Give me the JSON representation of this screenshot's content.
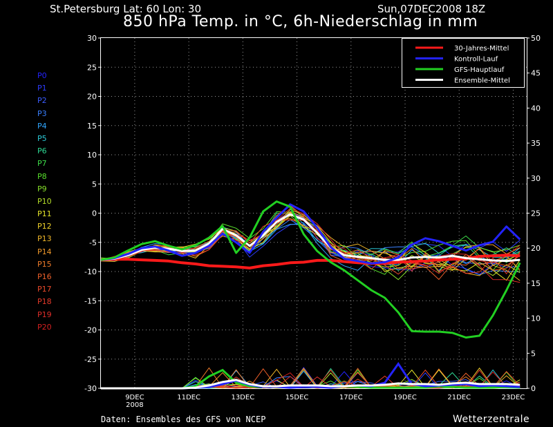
{
  "header": {
    "location": "St.Petersburg  Lat: 60 Lon: 30",
    "run": "Sun,07DEC2008 18Z",
    "title": "850 hPa Temp. in °C, 6h-Niederschlag in mm"
  },
  "footer": {
    "source": "Daten: Ensembles des GFS von NCEP",
    "brand": "Wetterzentrale"
  },
  "members": [
    {
      "label": "P0",
      "color": "#2323ff"
    },
    {
      "label": "P1",
      "color": "#2e3cff"
    },
    {
      "label": "P2",
      "color": "#3a5cff"
    },
    {
      "label": "P3",
      "color": "#3a80ff"
    },
    {
      "label": "P4",
      "color": "#30a6ff"
    },
    {
      "label": "P5",
      "color": "#2ccbd9"
    },
    {
      "label": "P6",
      "color": "#2ed894"
    },
    {
      "label": "P7",
      "color": "#3ede4a"
    },
    {
      "label": "P8",
      "color": "#58e02c"
    },
    {
      "label": "P9",
      "color": "#86e02a"
    },
    {
      "label": "P10",
      "color": "#b6e02a"
    },
    {
      "label": "P11",
      "color": "#e6e62a"
    },
    {
      "label": "P12",
      "color": "#f0d22a"
    },
    {
      "label": "P13",
      "color": "#f2b82a"
    },
    {
      "label": "P14",
      "color": "#f29a2a"
    },
    {
      "label": "P15",
      "color": "#f07c2a"
    },
    {
      "label": "P16",
      "color": "#ee602a"
    },
    {
      "label": "P17",
      "color": "#ec4a2a"
    },
    {
      "label": "P18",
      "color": "#e83a2a"
    },
    {
      "label": "P19",
      "color": "#e02e2a"
    },
    {
      "label": "P20",
      "color": "#d42020"
    }
  ],
  "chart_data": {
    "type": "line",
    "x_ticks": [
      {
        "day": 9,
        "label": "9DEC",
        "sub": "2008"
      },
      {
        "day": 11,
        "label": "11DEC"
      },
      {
        "day": 13,
        "label": "13DEC"
      },
      {
        "day": 15,
        "label": "15DEC"
      },
      {
        "day": 17,
        "label": "17DEC"
      },
      {
        "day": 19,
        "label": "19DEC"
      },
      {
        "day": 21,
        "label": "21DEC"
      },
      {
        "day": 23,
        "label": "23DEC"
      }
    ],
    "xlim": [
      7.75,
      23.5
    ],
    "ylim_left": [
      -30,
      30
    ],
    "ylim_right": [
      0,
      50
    ],
    "yticks_left": [
      30,
      25,
      20,
      15,
      10,
      5,
      0,
      -5,
      -10,
      -15,
      -20,
      -25,
      -30
    ],
    "yticks_right": [
      50,
      45,
      40,
      35,
      30,
      25,
      20,
      15,
      10,
      5,
      0
    ],
    "grid": true,
    "legend_position": "top-right",
    "legend": [
      {
        "label": "30-Jahres-Mittel",
        "color": "#ff1a1a"
      },
      {
        "label": "Kontroll-Lauf",
        "color": "#2323ff"
      },
      {
        "label": "GFS-Hauptlauf",
        "color": "#22d022"
      },
      {
        "label": "Ensemble-Mittel",
        "color": "#ffffff"
      }
    ],
    "temp_x_days": [
      7.75,
      8.25,
      8.75,
      9.25,
      9.75,
      10.25,
      10.75,
      11.25,
      11.75,
      12.25,
      12.75,
      13.25,
      13.75,
      14.25,
      14.75,
      15.25,
      15.75,
      16.25,
      16.75,
      17.25,
      17.75,
      18.25,
      18.75,
      19.25,
      19.75,
      20.25,
      20.75,
      21.25,
      21.75,
      22.25,
      22.75,
      23.25
    ],
    "temp_series": [
      {
        "name": "30-Jahres-Mittel",
        "color": "#ff1a1a",
        "width": 4,
        "values": [
          -8,
          -7.9,
          -7.9,
          -8,
          -8.1,
          -8.2,
          -8.5,
          -8.7,
          -9,
          -9.1,
          -9.2,
          -9.4,
          -9,
          -8.8,
          -8.5,
          -8.4,
          -8.1,
          -8.1,
          -8.3,
          -8.5,
          -8.6,
          -8.6,
          -8.4,
          -8.3,
          -8.2,
          -8,
          -7.9,
          -7.8,
          -7.4,
          -7.3,
          -7.2,
          -7.3
        ]
      },
      {
        "name": "Ensemble-Mittel",
        "color": "#ffffff",
        "width": 3,
        "values": [
          -8,
          -7.8,
          -7.2,
          -6.3,
          -5.9,
          -6.1,
          -6.5,
          -6.4,
          -5.2,
          -2.7,
          -3.8,
          -5.6,
          -3.8,
          -1.5,
          -0.2,
          -1.1,
          -3.4,
          -5.9,
          -7.2,
          -7.5,
          -7.7,
          -8,
          -8,
          -7.6,
          -7.5,
          -7.6,
          -7.3,
          -7.7,
          -7.9,
          -8.1,
          -8.2,
          -8
        ]
      },
      {
        "name": "Kontroll-Lauf",
        "color": "#2323ff",
        "width": 3,
        "values": [
          -8,
          -7.7,
          -7,
          -6,
          -5.7,
          -6.4,
          -7.3,
          -6.8,
          -5.6,
          -3.5,
          -5,
          -6.8,
          -3.2,
          -0.8,
          1.5,
          0.3,
          -2.5,
          -5.8,
          -7.8,
          -8.2,
          -8.6,
          -8.4,
          -7.6,
          -5.4,
          -4.3,
          -4.8,
          -5.6,
          -6.4,
          -5.5,
          -4.9,
          -2.3,
          -4.5
        ]
      },
      {
        "name": "GFS-Hauptlauf",
        "color": "#22d022",
        "width": 3,
        "values": [
          -8,
          -7.6,
          -6.4,
          -5.3,
          -4.8,
          -5.6,
          -6.2,
          -5.5,
          -4.2,
          -2.2,
          -6.8,
          -4.2,
          0.3,
          2,
          1.1,
          -3.6,
          -6.5,
          -8.4,
          -9.8,
          -11.5,
          -13.2,
          -14.5,
          -17,
          -20.2,
          -20.3,
          -20.3,
          -20.5,
          -21.3,
          -21,
          -17.5,
          -13.2,
          -8.5
        ]
      }
    ],
    "precip_series": [
      {
        "name": "GFS-Hauptlauf",
        "color": "#22d022",
        "values": [
          0,
          0,
          0,
          0,
          0,
          0,
          0,
          0.3,
          1.7,
          2.6,
          0.8,
          0.3,
          0.2,
          0.2,
          0.3,
          0.4,
          0.2,
          0.2,
          0.3,
          0.2,
          0.1,
          0.1,
          0.1,
          0.1,
          0.1,
          0.3,
          0.2,
          0.1,
          0.1,
          0.1,
          0.2,
          0.1
        ]
      },
      {
        "name": "Kontroll-Lauf",
        "color": "#2323ff",
        "values": [
          0,
          0,
          0,
          0,
          0,
          0,
          0,
          0.1,
          0.2,
          0.6,
          1.1,
          0.5,
          0.2,
          0.2,
          0.1,
          0.2,
          0.2,
          0.1,
          0.3,
          0.4,
          0.3,
          0.8,
          3.5,
          0.6,
          0.3,
          0.4,
          0.5,
          0.6,
          0.3,
          0.4,
          0.3,
          0.2
        ]
      },
      {
        "name": "Ensemble-Mittel",
        "color": "#ffffff",
        "values": [
          0,
          0,
          0,
          0,
          0,
          0,
          0,
          0.1,
          0.4,
          0.9,
          1.2,
          0.6,
          0.3,
          0.3,
          0.4,
          0.4,
          0.4,
          0.3,
          0.3,
          0.4,
          0.4,
          0.5,
          0.7,
          0.6,
          0.6,
          0.5,
          0.7,
          0.8,
          0.6,
          0.6,
          0.6,
          0.5
        ]
      }
    ]
  }
}
